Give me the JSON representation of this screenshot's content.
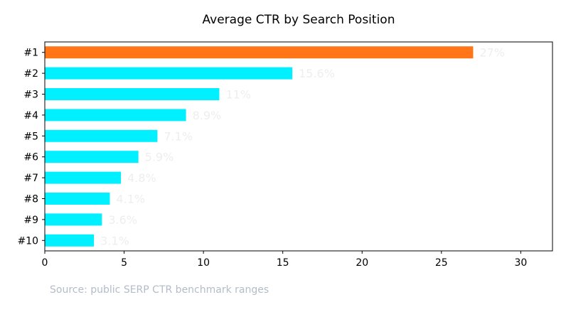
{
  "chart_data": {
    "type": "bar",
    "orientation": "horizontal",
    "title": "Average CTR by Search Position",
    "xlabel": "",
    "ylabel": "",
    "categories": [
      "#1",
      "#2",
      "#3",
      "#4",
      "#5",
      "#6",
      "#7",
      "#8",
      "#9",
      "#10"
    ],
    "values": [
      27,
      15.6,
      11,
      8.9,
      7.1,
      5.9,
      4.8,
      4.1,
      3.6,
      3.1
    ],
    "value_labels": [
      "27%",
      "15.6%",
      "11%",
      "8.9%",
      "7.1%",
      "5.9%",
      "4.8%",
      "4.1%",
      "3.6%",
      "3.1%"
    ],
    "xlim": [
      0,
      32
    ],
    "xticks": [
      0,
      5,
      10,
      15,
      20,
      25,
      30
    ],
    "grid": false,
    "highlight_index": 0,
    "colors": {
      "highlight": "#ff7518",
      "bar": "#00f0ff",
      "value_label": "#eeeeee",
      "source_text": "#b4bcc8"
    },
    "footnote": "Source: public SERP CTR benchmark ranges"
  }
}
